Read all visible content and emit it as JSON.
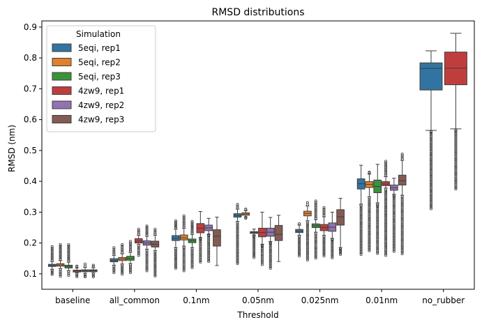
{
  "chart_data": {
    "type": "box",
    "title": "RMSD distributions",
    "xlabel": "Threshold",
    "ylabel": "RMSD (nm)",
    "ylim": [
      0.05,
      0.92
    ],
    "yticks": [
      0.1,
      0.2,
      0.3,
      0.4,
      0.5,
      0.6,
      0.7,
      0.8,
      0.9
    ],
    "ytick_labels": [
      "0.1",
      "0.2",
      "0.3",
      "0.4",
      "0.5",
      "0.6",
      "0.7",
      "0.8",
      "0.9"
    ],
    "categories": [
      "baseline",
      "all_common",
      "0.1nm",
      "0.05nm",
      "0.025nm",
      "0.01nm",
      "no_rubber"
    ],
    "legend": {
      "title": "Simulation",
      "position": "top-left",
      "entries": [
        "5eqi, rep1",
        "5eqi, rep2",
        "5eqi, rep3",
        "4zw9, rep1",
        "4zw9, rep2",
        "4zw9, rep3"
      ]
    },
    "series": [
      {
        "name": "5eqi, rep1",
        "color": "#3274a1",
        "boxes": [
          {
            "whislo": 0.115,
            "q1": 0.124,
            "med": 0.127,
            "q3": 0.131,
            "whishi": 0.14,
            "fliers_lo": 0.098,
            "fliers_hi": 0.188
          },
          {
            "whislo": 0.128,
            "q1": 0.139,
            "med": 0.143,
            "q3": 0.149,
            "whishi": 0.16,
            "fliers_lo": 0.104,
            "fliers_hi": 0.185
          },
          {
            "whislo": 0.185,
            "q1": 0.208,
            "med": 0.215,
            "q3": 0.224,
            "whishi": 0.245,
            "fliers_lo": 0.118,
            "fliers_hi": 0.272
          },
          {
            "whislo": 0.27,
            "q1": 0.284,
            "med": 0.289,
            "q3": 0.295,
            "whishi": 0.31,
            "fliers_lo": 0.133,
            "fliers_hi": 0.325
          },
          {
            "whislo": 0.225,
            "q1": 0.234,
            "med": 0.238,
            "q3": 0.244,
            "whishi": 0.258,
            "fliers_lo": 0.158,
            "fliers_hi": 0.262
          },
          {
            "whislo": 0.326,
            "q1": 0.375,
            "med": 0.392,
            "q3": 0.408,
            "whishi": 0.452,
            "fliers_lo": 0.163,
            "fliers_hi": 0.323
          },
          {
            "whislo": 0.565,
            "q1": 0.696,
            "med": 0.766,
            "q3": 0.784,
            "whishi": 0.823,
            "fliers_lo": 0.311,
            "fliers_hi": 0.56
          }
        ]
      },
      {
        "name": "5eqi, rep2",
        "color": "#e1812c",
        "boxes": [
          {
            "whislo": 0.117,
            "q1": 0.125,
            "med": 0.129,
            "q3": 0.133,
            "whishi": 0.143,
            "fliers_lo": 0.092,
            "fliers_hi": 0.195
          },
          {
            "whislo": 0.132,
            "q1": 0.143,
            "med": 0.148,
            "q3": 0.153,
            "whishi": 0.165,
            "fliers_lo": 0.099,
            "fliers_hi": 0.195
          },
          {
            "whislo": 0.19,
            "q1": 0.21,
            "med": 0.217,
            "q3": 0.226,
            "whishi": 0.248,
            "fliers_lo": 0.11,
            "fliers_hi": 0.288
          },
          {
            "whislo": 0.284,
            "q1": 0.29,
            "med": 0.294,
            "q3": 0.298,
            "whishi": 0.305,
            "fliers_lo": 0.283,
            "fliers_hi": 0.31
          },
          {
            "whislo": 0.272,
            "q1": 0.288,
            "med": 0.296,
            "q3": 0.303,
            "whishi": 0.32,
            "fliers_lo": 0.145,
            "fliers_hi": 0.331
          },
          {
            "whislo": 0.35,
            "q1": 0.38,
            "med": 0.39,
            "q3": 0.399,
            "whishi": 0.423,
            "fliers_lo": 0.175,
            "fliers_hi": 0.43
          },
          null
        ]
      },
      {
        "name": "5eqi, rep3",
        "color": "#3a923a",
        "boxes": [
          {
            "whislo": 0.11,
            "q1": 0.119,
            "med": 0.124,
            "q3": 0.128,
            "whishi": 0.138,
            "fliers_lo": 0.095,
            "fliers_hi": 0.195
          },
          {
            "whislo": 0.133,
            "q1": 0.144,
            "med": 0.15,
            "q3": 0.157,
            "whishi": 0.17,
            "fliers_lo": 0.104,
            "fliers_hi": 0.205
          },
          {
            "whislo": 0.185,
            "q1": 0.201,
            "med": 0.207,
            "q3": 0.213,
            "whishi": 0.228,
            "fliers_lo": 0.12,
            "fliers_hi": 0.27
          },
          {
            "whislo": 0.225,
            "q1": 0.231,
            "med": 0.234,
            "q3": 0.237,
            "whishi": 0.245,
            "fliers_lo": 0.153,
            "fliers_hi": 0.224
          },
          {
            "whislo": 0.235,
            "q1": 0.25,
            "med": 0.256,
            "q3": 0.262,
            "whishi": 0.276,
            "fliers_lo": 0.151,
            "fliers_hi": 0.336
          },
          {
            "whislo": 0.33,
            "q1": 0.363,
            "med": 0.383,
            "q3": 0.404,
            "whishi": 0.455,
            "fliers_lo": 0.166,
            "fliers_hi": 0.32
          },
          null
        ]
      },
      {
        "name": "4zw9, rep1",
        "color": "#c03d3e",
        "boxes": [
          {
            "whislo": 0.103,
            "q1": 0.106,
            "med": 0.109,
            "q3": 0.112,
            "whishi": 0.119,
            "fliers_lo": 0.091,
            "fliers_hi": 0.125
          },
          {
            "whislo": 0.195,
            "q1": 0.2,
            "med": 0.206,
            "q3": 0.214,
            "whishi": 0.225,
            "fliers_lo": 0.16,
            "fliers_hi": 0.245
          },
          {
            "whislo": 0.218,
            "q1": 0.233,
            "med": 0.248,
            "q3": 0.263,
            "whishi": 0.302,
            "fliers_lo": 0.138,
            "fliers_hi": 0.212
          },
          {
            "whislo": 0.196,
            "q1": 0.22,
            "med": 0.234,
            "q3": 0.248,
            "whishi": 0.3,
            "fliers_lo": 0.13,
            "fliers_hi": 0.19
          },
          {
            "whislo": 0.225,
            "q1": 0.24,
            "med": 0.25,
            "q3": 0.26,
            "whishi": 0.285,
            "fliers_lo": 0.158,
            "fliers_hi": 0.315
          },
          {
            "whislo": 0.378,
            "q1": 0.386,
            "med": 0.391,
            "q3": 0.399,
            "whishi": 0.415,
            "fliers_lo": 0.16,
            "fliers_hi": 0.465
          },
          {
            "whislo": 0.57,
            "q1": 0.713,
            "med": 0.767,
            "q3": 0.819,
            "whishi": 0.88,
            "fliers_lo": 0.375,
            "fliers_hi": 0.565
          }
        ]
      },
      {
        "name": "4zw9, rep2",
        "color": "#9372b2",
        "boxes": [
          {
            "whislo": 0.102,
            "q1": 0.107,
            "med": 0.11,
            "q3": 0.113,
            "whishi": 0.121,
            "fliers_lo": 0.09,
            "fliers_hi": 0.132
          },
          {
            "whislo": 0.18,
            "q1": 0.193,
            "med": 0.2,
            "q3": 0.207,
            "whishi": 0.222,
            "fliers_lo": 0.11,
            "fliers_hi": 0.255
          },
          {
            "whislo": 0.228,
            "q1": 0.24,
            "med": 0.249,
            "q3": 0.258,
            "whishi": 0.28,
            "fliers_lo": 0.14,
            "fliers_hi": 0.227
          },
          {
            "whislo": 0.205,
            "q1": 0.222,
            "med": 0.235,
            "q3": 0.248,
            "whishi": 0.283,
            "fliers_lo": 0.118,
            "fliers_hi": 0.199
          },
          {
            "whislo": 0.215,
            "q1": 0.238,
            "med": 0.251,
            "q3": 0.265,
            "whishi": 0.3,
            "fliers_lo": 0.152,
            "fliers_hi": 0.21
          },
          {
            "whislo": 0.358,
            "q1": 0.371,
            "med": 0.379,
            "q3": 0.388,
            "whishi": 0.41,
            "fliers_lo": 0.173,
            "fliers_hi": 0.35
          },
          null
        ]
      },
      {
        "name": "4zw9, rep3",
        "color": "#845b53",
        "boxes": [
          {
            "whislo": 0.103,
            "q1": 0.107,
            "med": 0.11,
            "q3": 0.113,
            "whishi": 0.12,
            "fliers_lo": 0.09,
            "fliers_hi": 0.128
          },
          {
            "whislo": 0.175,
            "q1": 0.187,
            "med": 0.196,
            "q3": 0.206,
            "whishi": 0.225,
            "fliers_lo": 0.093,
            "fliers_hi": 0.245
          },
          {
            "whislo": 0.127,
            "q1": 0.19,
            "med": 0.222,
            "q3": 0.243,
            "whishi": 0.284,
            "fliers_lo": 0.127,
            "fliers_hi": 0.127
          },
          {
            "whislo": 0.14,
            "q1": 0.208,
            "med": 0.228,
            "q3": 0.257,
            "whishi": 0.29,
            "fliers_lo": 0.14,
            "fliers_hi": 0.14
          },
          {
            "whislo": 0.185,
            "q1": 0.258,
            "med": 0.285,
            "q3": 0.308,
            "whishi": 0.345,
            "fliers_lo": 0.163,
            "fliers_hi": 0.18
          },
          {
            "whislo": 0.355,
            "q1": 0.388,
            "med": 0.402,
            "q3": 0.42,
            "whishi": 0.468,
            "fliers_lo": 0.165,
            "fliers_hi": 0.488
          },
          null
        ]
      }
    ]
  }
}
